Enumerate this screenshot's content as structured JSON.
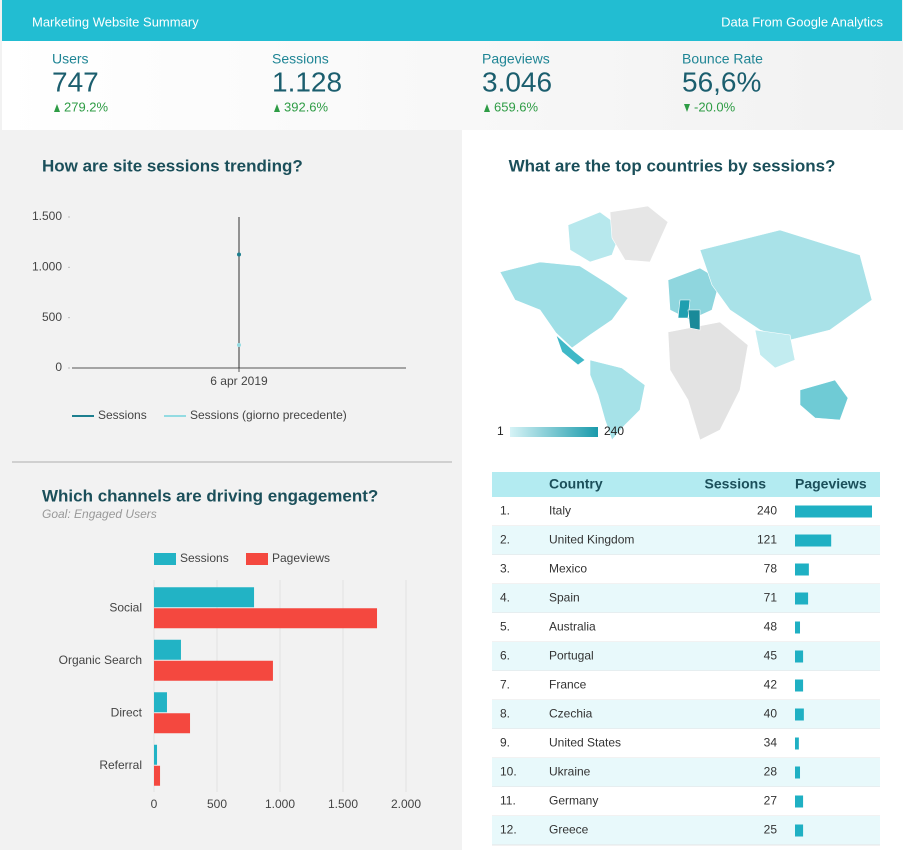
{
  "header": {
    "title": "Marketing Website Summary",
    "source": "Data From Google Analytics"
  },
  "kpis": [
    {
      "label": "Users",
      "value": "747",
      "change": "279.2%",
      "direction": "up"
    },
    {
      "label": "Sessions",
      "value": "1.128",
      "change": "392.6%",
      "direction": "up"
    },
    {
      "label": "Pageviews",
      "value": "3.046",
      "change": "659.6%",
      "direction": "up"
    },
    {
      "label": "Bounce Rate",
      "value": "56,6%",
      "change": "-20.0%",
      "direction": "down"
    }
  ],
  "chart_data": [
    {
      "type": "line",
      "title": "How are site sessions trending?",
      "categories": [
        "6 apr 2019"
      ],
      "series": [
        {
          "name": "Sessions",
          "color": "#1d7f8f",
          "values": [
            1128
          ]
        },
        {
          "name": "Sessions (giorno precedente)",
          "color": "#93dbe2",
          "values": [
            229
          ]
        }
      ],
      "ylim": [
        0,
        1500
      ],
      "yticks": [
        0,
        500,
        {
          "value": 1000,
          "label": "1.000"
        },
        {
          "value": 1500,
          "label": "1.500"
        }
      ],
      "legend": "bottom"
    },
    {
      "type": "hbar",
      "title": "Which channels are driving engagement?",
      "subtitle": "Goal: Engaged Users",
      "categories": [
        "Social",
        "Organic Search",
        "Direct",
        "Referral"
      ],
      "series": [
        {
          "name": "Sessions",
          "color": "#22b3c5",
          "values": [
            794,
            214,
            103,
            24
          ]
        },
        {
          "name": "Pageviews",
          "color": "#f4483f",
          "values": [
            1770,
            944,
            286,
            48
          ]
        }
      ],
      "xlim": [
        0,
        2000
      ],
      "xticks": [
        0,
        500,
        {
          "value": 1000,
          "label": "1.000"
        },
        {
          "value": 1500,
          "label": "1.500"
        },
        {
          "value": 2000,
          "label": "2.000"
        }
      ],
      "grid": true,
      "legend": "top"
    }
  ],
  "map": {
    "title": "What are the top countries by sessions?",
    "legend_min": 1,
    "legend_max": 240,
    "color_min": "#d6f3f6",
    "color_max": "#1a9aab"
  },
  "table": {
    "columns": [
      "Country",
      "Sessions",
      "Pageviews"
    ],
    "bar_color": "#1fb0c3",
    "rows": [
      {
        "rank": "1.",
        "country": "Italy",
        "sessions": 240,
        "pageviews": 1000
      },
      {
        "rank": "2.",
        "country": "United Kingdom",
        "sessions": 121,
        "pageviews": 470
      },
      {
        "rank": "3.",
        "country": "Mexico",
        "sessions": 78,
        "pageviews": 180
      },
      {
        "rank": "4.",
        "country": "Spain",
        "sessions": 71,
        "pageviews": 170
      },
      {
        "rank": "5.",
        "country": "Australia",
        "sessions": 48,
        "pageviews": 65
      },
      {
        "rank": "6.",
        "country": "Portugal",
        "sessions": 45,
        "pageviews": 105
      },
      {
        "rank": "7.",
        "country": "France",
        "sessions": 42,
        "pageviews": 105
      },
      {
        "rank": "8.",
        "country": "Czechia",
        "sessions": 40,
        "pageviews": 115
      },
      {
        "rank": "9.",
        "country": "United States",
        "sessions": 34,
        "pageviews": 50
      },
      {
        "rank": "10.",
        "country": "Ukraine",
        "sessions": 28,
        "pageviews": 65
      },
      {
        "rank": "11.",
        "country": "Germany",
        "sessions": 27,
        "pageviews": 105
      },
      {
        "rank": "12.",
        "country": "Greece",
        "sessions": 25,
        "pageviews": 105
      }
    ]
  }
}
